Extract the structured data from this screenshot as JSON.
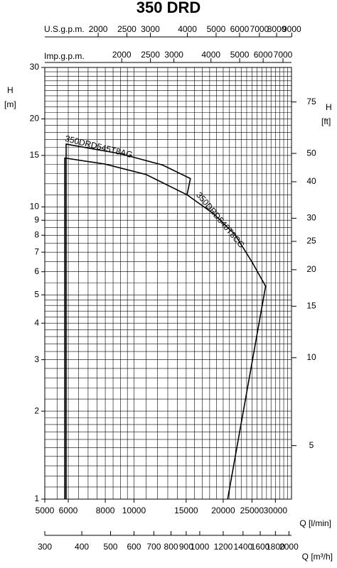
{
  "chart_data": {
    "type": "line",
    "title": "350 DRD",
    "log_x": true,
    "log_y": true,
    "grid": true,
    "xlabel": "Q [l/min]",
    "ylabel": "H",
    "yunit": "[m]",
    "y2label": "H",
    "y2unit": "[ft]",
    "xlim": [
      5000,
      34000
    ],
    "xticks": [
      5000,
      6000,
      8000,
      10000,
      15000,
      20000,
      25000,
      30000
    ],
    "ylim": [
      1,
      30
    ],
    "yticks": [
      1,
      2,
      3,
      4,
      5,
      6,
      7,
      8,
      9,
      10,
      15,
      20,
      30
    ],
    "y2lim": [
      3.281,
      98.43
    ],
    "y2ticks": [
      5,
      10,
      15,
      20,
      25,
      30,
      40,
      50,
      75
    ],
    "xgrid": [
      5000,
      5500,
      6000,
      6500,
      7000,
      7500,
      8000,
      8500,
      9000,
      9500,
      10000,
      11000,
      12000,
      13000,
      14000,
      15000,
      16000,
      17000,
      18000,
      19000,
      20000,
      21000,
      22000,
      23000,
      24000,
      25000,
      26000,
      27000,
      28000,
      29000,
      30000,
      31000,
      32000,
      33000,
      34000
    ],
    "ygrid": [
      1,
      1.1,
      1.2,
      1.3,
      1.4,
      1.5,
      1.6,
      1.7,
      1.8,
      1.9,
      2,
      2.2,
      2.4,
      2.6,
      2.8,
      3,
      3.2,
      3.4,
      3.6,
      3.8,
      4,
      4.2,
      4.4,
      4.6,
      4.8,
      5,
      5.5,
      6,
      6.5,
      7,
      7.5,
      8,
      8.5,
      9,
      9.5,
      10,
      11,
      12,
      13,
      14,
      15,
      16,
      17,
      18,
      19,
      20,
      21,
      22,
      23,
      24,
      25,
      26,
      27,
      28,
      29,
      30
    ],
    "us_gpm": {
      "label": "U.S.g.p.m.",
      "lim": [
        1321,
        8982
      ],
      "ticks": [
        2000,
        2500,
        3000,
        4000,
        5000,
        6000,
        7000,
        8000,
        9000
      ]
    },
    "imp_gpm": {
      "label": "Imp.g.p.m.",
      "lim": [
        1100,
        7479
      ],
      "ticks": [
        2000,
        2500,
        3000,
        4000,
        5000,
        6000,
        7000
      ]
    },
    "m3h": {
      "label": "Q [m³/h]",
      "lim": [
        300,
        2040
      ],
      "ticks": [
        300,
        400,
        500,
        600,
        700,
        800,
        900,
        1000,
        1200,
        1400,
        1600,
        1800,
        2000
      ]
    },
    "series": [
      {
        "name": "350DRD545T8AG",
        "color": "#000000",
        "x": [
          5900,
          5900,
          9000,
          12500,
          15500,
          15100
        ],
        "values": [
          1,
          16.4,
          15.2,
          13.9,
          12.5,
          11.0
        ]
      },
      {
        "name": "350DRD540T8CG",
        "color": "#000000",
        "x": [
          5840,
          5840,
          8000,
          11000,
          15100,
          18500,
          21900,
          25100,
          27800,
          20700
        ],
        "values": [
          1,
          14.7,
          14.0,
          12.9,
          11.0,
          9.5,
          8.05,
          6.44,
          5.35,
          1
        ]
      }
    ]
  }
}
